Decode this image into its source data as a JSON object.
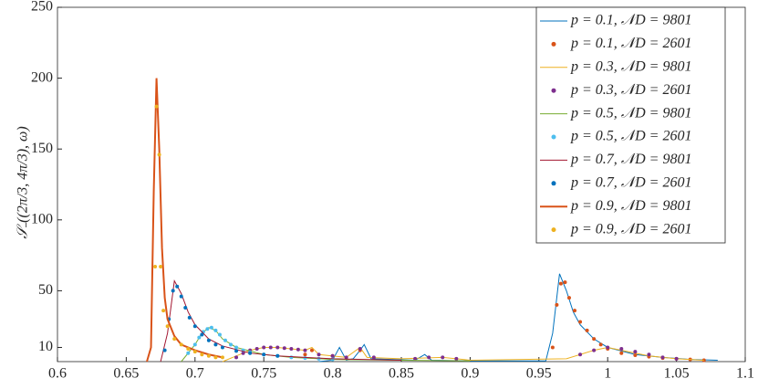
{
  "chart_data": {
    "type": "line",
    "ylabel": "𝒮₋((2π/3, 4π/3), ω)",
    "xlim": [
      0.6,
      1.1
    ],
    "xticks": [
      0.6,
      0.65,
      0.7,
      0.75,
      0.8,
      0.85,
      0.9,
      0.95,
      1,
      1.05,
      1.1
    ],
    "ylim": [
      0,
      250
    ],
    "yticks": [
      10,
      50,
      100,
      150,
      200,
      250
    ],
    "legend": "top-right",
    "series": [
      {
        "name": "p = 0.1, 𝒩D = 9801",
        "color": "#0072BD",
        "style": "line",
        "x": [
          0.79,
          0.8,
          0.805,
          0.81,
          0.815,
          0.82,
          0.823,
          0.828,
          0.86,
          0.867,
          0.872,
          0.9,
          0.955,
          0.96,
          0.965,
          0.97,
          0.975,
          0.98,
          0.99,
          1.0,
          1.02,
          1.04,
          1.06,
          1.08
        ],
        "values": [
          0,
          1,
          10,
          1,
          2,
          8,
          12,
          2,
          1,
          5,
          1,
          0.5,
          0.5,
          20,
          62,
          50,
          35,
          26,
          16,
          10,
          5,
          3,
          1.5,
          1
        ]
      },
      {
        "name": "p = 0.1, 𝒩D = 2601",
        "color": "#D95319",
        "style": "dots",
        "x": [
          0.78,
          0.785,
          0.8,
          0.82,
          0.96,
          0.963,
          0.966,
          0.969,
          0.972,
          0.976,
          0.98,
          0.985,
          0.99,
          0.995,
          1.0,
          1.01,
          1.02,
          1.03,
          1.04,
          1.05,
          1.06,
          1.07
        ],
        "values": [
          5,
          8,
          4,
          8,
          10,
          40,
          55,
          56,
          45,
          36,
          28,
          22,
          16,
          12,
          9,
          6,
          4.5,
          3.5,
          2.5,
          2,
          1.5,
          1
        ]
      },
      {
        "name": "p = 0.3, 𝒩D = 9801",
        "color": "#EDB120",
        "style": "line",
        "x": [
          0.72,
          0.74,
          0.75,
          0.76,
          0.78,
          0.785,
          0.79,
          0.81,
          0.82,
          0.825,
          0.85,
          0.88,
          0.9,
          0.97,
          0.99,
          1.0,
          1.01,
          1.03,
          1.05,
          1.07
        ],
        "values": [
          0,
          8,
          10,
          10,
          8,
          10,
          5,
          3,
          10,
          3,
          2,
          3,
          1,
          2,
          8,
          10,
          8,
          4,
          2,
          1
        ]
      },
      {
        "name": "p = 0.3, 𝒩D = 2601",
        "color": "#7E2F8E",
        "style": "dots",
        "x": [
          0.73,
          0.735,
          0.74,
          0.745,
          0.75,
          0.755,
          0.76,
          0.765,
          0.77,
          0.775,
          0.78,
          0.79,
          0.8,
          0.81,
          0.82,
          0.83,
          0.86,
          0.87,
          0.88,
          0.89,
          0.98,
          0.99,
          1.0,
          1.01,
          1.02,
          1.03,
          1.04,
          1.05
        ],
        "values": [
          3,
          6,
          8,
          9,
          10,
          10,
          10,
          9.5,
          9,
          8.5,
          8,
          5,
          4,
          3,
          9,
          3,
          2,
          3,
          3,
          2,
          5,
          8,
          10,
          9,
          7,
          5,
          3,
          2
        ]
      },
      {
        "name": "p = 0.5, 𝒩D = 9801",
        "color": "#77AC30",
        "style": "line",
        "x": [
          0.69,
          0.7,
          0.705,
          0.71,
          0.715,
          0.72,
          0.73,
          0.75,
          0.77,
          0.8,
          0.85,
          0.9
        ],
        "values": [
          0,
          12,
          20,
          24,
          22,
          16,
          10,
          5,
          3,
          1.5,
          1,
          0.5
        ]
      },
      {
        "name": "p = 0.5, 𝒩D = 2601",
        "color": "#4DBEEE",
        "style": "dots",
        "x": [
          0.695,
          0.7,
          0.703,
          0.706,
          0.709,
          0.712,
          0.715,
          0.718,
          0.722,
          0.726,
          0.73,
          0.735,
          0.74,
          0.75,
          0.76,
          0.77,
          0.78,
          0.79,
          0.8
        ],
        "values": [
          6,
          12,
          17,
          21,
          23,
          24,
          22,
          19,
          15,
          12,
          10,
          8,
          6.5,
          5,
          4,
          3,
          2.5,
          2,
          1.5
        ]
      },
      {
        "name": "p = 0.7, 𝒩D = 9801",
        "color": "#A2142F",
        "style": "line",
        "x": [
          0.675,
          0.68,
          0.685,
          0.69,
          0.695,
          0.7,
          0.71,
          0.72,
          0.74,
          0.76,
          0.78,
          0.8,
          0.85
        ],
        "values": [
          0,
          20,
          57,
          48,
          35,
          26,
          16,
          11,
          6,
          4,
          3,
          2,
          1
        ]
      },
      {
        "name": "p = 0.7, 𝒩D = 2601",
        "color": "#0072BD",
        "style": "dots",
        "x": [
          0.678,
          0.681,
          0.684,
          0.687,
          0.69,
          0.693,
          0.696,
          0.7,
          0.705,
          0.71,
          0.715,
          0.72,
          0.73,
          0.74,
          0.75,
          0.76
        ],
        "values": [
          8,
          30,
          50,
          53,
          46,
          38,
          31,
          25,
          19,
          15,
          12,
          10,
          7.5,
          6,
          5,
          4
        ]
      },
      {
        "name": "p = 0.9, 𝒩D = 9801",
        "color": "#D95319",
        "style": "line",
        "width": 2,
        "x": [
          0.665,
          0.668,
          0.67,
          0.672,
          0.674,
          0.676,
          0.678,
          0.68,
          0.685,
          0.69,
          0.7,
          0.71,
          0.72
        ],
        "values": [
          0,
          10,
          120,
          200,
          150,
          80,
          45,
          30,
          18,
          12,
          8,
          5,
          3
        ]
      },
      {
        "name": "p = 0.9, 𝒩D = 2601",
        "color": "#EDB120",
        "style": "dots",
        "x": [
          0.671,
          0.672,
          0.674,
          0.675,
          0.677,
          0.68,
          0.685,
          0.69,
          0.695,
          0.7,
          0.705,
          0.71,
          0.715,
          0.72
        ],
        "values": [
          67,
          180,
          146,
          67,
          36,
          25,
          16,
          12,
          9,
          7,
          5,
          4,
          3,
          3
        ]
      }
    ]
  }
}
